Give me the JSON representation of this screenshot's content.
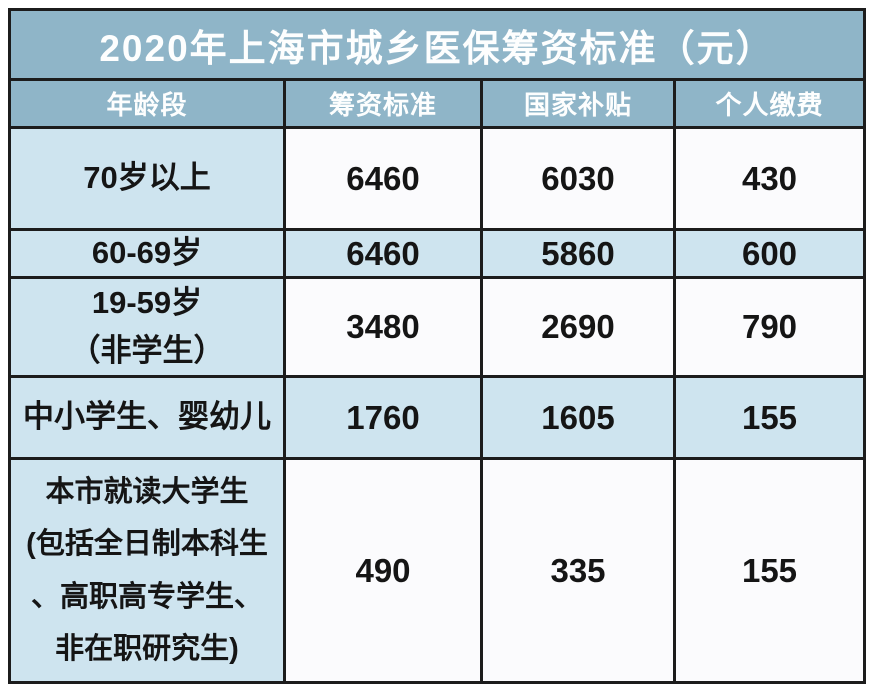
{
  "title": "2020年上海市城乡医保筹资标准（元）",
  "colors": {
    "header_bg": "#8FB5C8",
    "row_light_blue": "#CEE4EF",
    "row_white": "#FBFBFD",
    "border": "#1C1C1C",
    "header_text": "#FDFEFE",
    "body_text": "#151515"
  },
  "chart_data": {
    "type": "table",
    "title": "2020年上海市城乡医保筹资标准（元）",
    "columns": [
      "年龄段",
      "筹资标准",
      "国家补贴",
      "个人缴费"
    ],
    "rows": [
      {
        "label": "70岁以上",
        "values": [
          6460,
          6030,
          430
        ]
      },
      {
        "label": "60-69岁",
        "values": [
          6460,
          5860,
          600
        ]
      },
      {
        "label": "19-59岁\n（非学生）",
        "values": [
          3480,
          2690,
          790
        ]
      },
      {
        "label": "中小学生、婴幼儿",
        "values": [
          1760,
          1605,
          155
        ]
      },
      {
        "label": "本市就读大学生\n(包括全日制本科生\n、高职高专学生、\n非在职研究生)",
        "values": [
          490,
          335,
          155
        ]
      }
    ]
  }
}
